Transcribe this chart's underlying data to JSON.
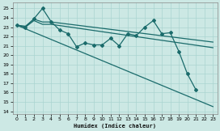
{
  "xlabel": "Humidex (Indice chaleur)",
  "background_color": "#cce8e4",
  "grid_color": "#aad4d0",
  "line_color": "#1a6b6b",
  "xlim": [
    -0.5,
    23.5
  ],
  "ylim": [
    13.7,
    25.6
  ],
  "yticks": [
    14,
    15,
    16,
    17,
    18,
    19,
    20,
    21,
    22,
    23,
    24,
    25
  ],
  "xticks": [
    0,
    1,
    2,
    3,
    4,
    5,
    6,
    7,
    8,
    9,
    10,
    11,
    12,
    13,
    14,
    15,
    16,
    17,
    18,
    19,
    20,
    21,
    22,
    23
  ],
  "series": [
    {
      "x": [
        0,
        1,
        2,
        3,
        4,
        5,
        6,
        7,
        8,
        9,
        10,
        11,
        12,
        13,
        14,
        15,
        16,
        17,
        18,
        19,
        20,
        21
      ],
      "y": [
        23.2,
        23.0,
        23.9,
        25.0,
        23.6,
        22.7,
        22.3,
        20.9,
        21.3,
        21.1,
        21.1,
        21.8,
        21.0,
        22.3,
        22.1,
        23.0,
        23.7,
        22.3,
        22.4,
        20.4,
        18.0,
        16.3
      ],
      "with_markers": true,
      "linewidth": 0.9
    },
    {
      "x": [
        0,
        1,
        2,
        3,
        4,
        23
      ],
      "y": [
        23.2,
        23.1,
        23.85,
        23.55,
        23.55,
        21.4
      ],
      "with_markers": false,
      "linewidth": 0.9
    },
    {
      "x": [
        0,
        1,
        2,
        3,
        4,
        23
      ],
      "y": [
        23.2,
        23.0,
        23.7,
        23.3,
        23.3,
        20.8
      ],
      "with_markers": false,
      "linewidth": 0.9
    },
    {
      "x": [
        0,
        23
      ],
      "y": [
        23.2,
        14.5
      ],
      "with_markers": false,
      "linewidth": 0.9
    }
  ]
}
